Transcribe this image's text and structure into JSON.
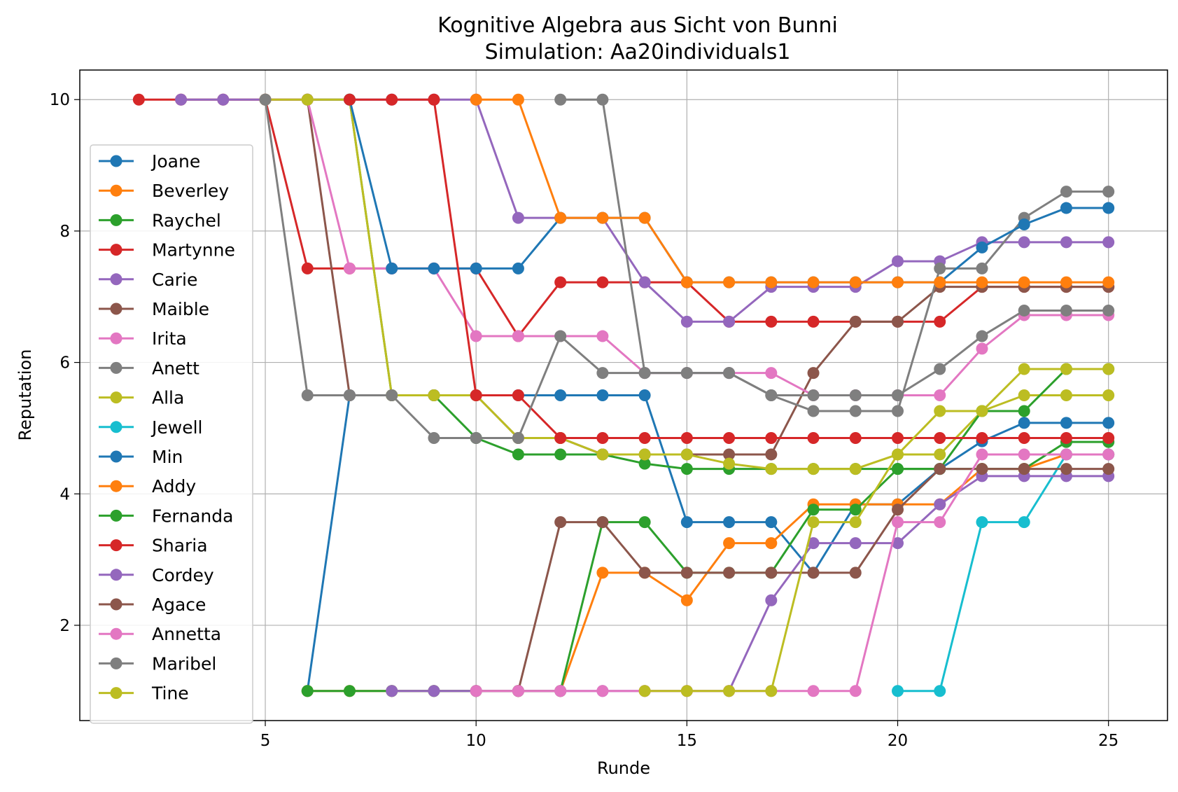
{
  "chart_data": {
    "type": "line",
    "title": "Kognitive Algebra aus Sicht von Bunni",
    "subtitle": "Simulation: Aa20individuals1",
    "xlabel": "Runde",
    "ylabel": "Reputation",
    "xlim": [
      0.6,
      26.4
    ],
    "ylim": [
      0.55,
      10.45
    ],
    "xticks": [
      5,
      10,
      15,
      20,
      25
    ],
    "yticks": [
      2,
      4,
      6,
      8,
      10
    ],
    "grid": true,
    "legend_position": "left",
    "series": [
      {
        "name": "Joane",
        "color": "#1f77b4",
        "x": [
          6,
          7,
          8,
          9,
          10,
          11,
          12,
          13,
          14,
          15,
          16,
          17,
          18,
          19,
          20,
          21,
          22,
          23,
          24,
          25
        ],
        "y": [
          1,
          5.5,
          5.5,
          5.5,
          5.5,
          5.5,
          5.5,
          5.5,
          5.5,
          3.57,
          3.57,
          3.57,
          2.8,
          3.84,
          3.84,
          4.38,
          4.8,
          5.08,
          5.08,
          5.08
        ]
      },
      {
        "name": "Beverley",
        "color": "#ff7f0e",
        "x": [
          6,
          7,
          8,
          9,
          10,
          11,
          12,
          13,
          14,
          15,
          16,
          17,
          18,
          19,
          20,
          21,
          22,
          23,
          24,
          25
        ],
        "y": [
          1,
          1,
          1,
          1,
          1,
          1,
          1,
          2.8,
          2.8,
          2.38,
          3.25,
          3.25,
          3.84,
          3.84,
          3.84,
          3.84,
          4.38,
          4.38,
          4.6,
          4.6
        ]
      },
      {
        "name": "Raychel",
        "color": "#2ca02c",
        "x": [
          6,
          7,
          8,
          9,
          10,
          11,
          12,
          13,
          14,
          15,
          16,
          17,
          18,
          19,
          20,
          21,
          22,
          23,
          24,
          25
        ],
        "y": [
          10,
          10,
          5.5,
          5.5,
          4.85,
          4.6,
          4.6,
          4.6,
          4.46,
          4.38,
          4.38,
          4.38,
          4.38,
          4.38,
          4.38,
          4.38,
          4.38,
          4.38,
          4.79,
          4.79
        ]
      },
      {
        "name": "Martynne",
        "color": "#d62728",
        "x": [
          2,
          3,
          4,
          5,
          6,
          7,
          8,
          9,
          10,
          11,
          12,
          13,
          14,
          15,
          16,
          17,
          18,
          19,
          20,
          21,
          22,
          23,
          24,
          25
        ],
        "y": [
          10,
          10,
          10,
          10,
          7.43,
          7.43,
          7.43,
          7.43,
          7.43,
          6.4,
          7.22,
          7.22,
          7.22,
          7.22,
          6.62,
          6.62,
          6.62,
          6.62,
          6.62,
          6.62,
          7.15,
          7.15,
          7.15,
          7.15
        ]
      },
      {
        "name": "Carie",
        "color": "#9467bd",
        "x": [
          3,
          4,
          5,
          6,
          7,
          8,
          9,
          10,
          11,
          12,
          13,
          14,
          15,
          16,
          17,
          18,
          19,
          20,
          21,
          22,
          23,
          24,
          25
        ],
        "y": [
          10,
          10,
          10,
          10,
          10,
          10,
          10,
          10,
          8.2,
          8.2,
          8.2,
          7.22,
          6.62,
          6.62,
          7.15,
          7.15,
          7.15,
          7.54,
          7.54,
          7.83,
          7.83,
          7.83,
          7.83
        ]
      },
      {
        "name": "Maible",
        "color": "#8c564b",
        "x": [
          5,
          6,
          7,
          8,
          9,
          10,
          11,
          12,
          13,
          14,
          15,
          16,
          17,
          18,
          19,
          20,
          21,
          22,
          23,
          24,
          25
        ],
        "y": [
          10,
          10,
          5.5,
          5.5,
          5.5,
          5.5,
          4.85,
          4.85,
          4.6,
          4.6,
          4.6,
          4.6,
          4.6,
          5.84,
          6.62,
          6.62,
          7.15,
          7.15,
          7.15,
          7.15,
          7.15
        ]
      },
      {
        "name": "Irita",
        "color": "#e377c2",
        "x": [
          5,
          6,
          7,
          8,
          9,
          10,
          11,
          12,
          13,
          14,
          15,
          16,
          17,
          18,
          19,
          20,
          21,
          22,
          23,
          24,
          25
        ],
        "y": [
          10,
          10,
          7.43,
          7.43,
          7.43,
          6.4,
          6.4,
          6.4,
          6.4,
          5.84,
          5.84,
          5.84,
          5.84,
          5.5,
          5.5,
          5.5,
          5.5,
          6.21,
          6.72,
          6.72,
          6.72
        ]
      },
      {
        "name": "Anett",
        "color": "#7f7f7f",
        "x": [
          12,
          13,
          14,
          15,
          16,
          17,
          18,
          19,
          20,
          21,
          22,
          23,
          24,
          25
        ],
        "y": [
          10,
          10,
          5.84,
          5.84,
          5.84,
          5.5,
          5.26,
          5.26,
          5.26,
          7.43,
          7.43,
          8.2,
          8.6,
          8.6
        ]
      },
      {
        "name": "Alla",
        "color": "#bcbd22",
        "x": [
          5,
          6,
          7,
          8,
          9,
          10,
          11,
          12,
          13,
          14,
          15,
          16,
          17,
          18,
          19,
          20,
          21,
          22,
          23,
          24,
          25
        ],
        "y": [
          10,
          10,
          10,
          5.5,
          5.5,
          5.5,
          4.85,
          4.85,
          4.6,
          4.6,
          4.6,
          4.46,
          4.38,
          4.38,
          4.38,
          4.6,
          4.6,
          5.26,
          5.5,
          5.5,
          5.5
        ]
      },
      {
        "name": "Jewell",
        "color": "#17becf",
        "x": [
          20,
          21,
          22,
          23,
          24,
          25
        ],
        "y": [
          1,
          1,
          3.57,
          3.57,
          4.6,
          4.6
        ]
      },
      {
        "name": "Min",
        "color": "#1f77b4",
        "x": [
          7,
          8,
          9,
          10,
          11,
          12,
          13,
          14,
          15,
          16,
          17,
          18,
          19,
          20,
          21,
          22,
          23,
          24,
          25
        ],
        "y": [
          10,
          7.43,
          7.43,
          7.43,
          7.43,
          8.2,
          8.2,
          8.2,
          7.22,
          7.22,
          7.22,
          7.22,
          7.22,
          7.22,
          7.22,
          7.75,
          8.1,
          8.35,
          8.35
        ]
      },
      {
        "name": "Addy",
        "color": "#ff7f0e",
        "x": [
          10,
          11,
          12,
          13,
          14,
          15,
          16,
          17,
          18,
          19,
          20,
          21,
          22,
          23,
          24,
          25
        ],
        "y": [
          10,
          10,
          8.2,
          8.2,
          8.2,
          7.22,
          7.22,
          7.22,
          7.22,
          7.22,
          7.22,
          7.22,
          7.22,
          7.22,
          7.22,
          7.22
        ]
      },
      {
        "name": "Fernanda",
        "color": "#2ca02c",
        "x": [
          6,
          7,
          8,
          9,
          10,
          11,
          12,
          13,
          14,
          15,
          16,
          17,
          18,
          19,
          20,
          21,
          22,
          23,
          24,
          25
        ],
        "y": [
          1,
          1,
          1,
          1,
          1,
          1,
          1,
          3.57,
          3.57,
          2.8,
          2.8,
          2.8,
          3.76,
          3.76,
          4.38,
          4.38,
          5.26,
          5.26,
          5.9,
          5.9
        ]
      },
      {
        "name": "Sharia",
        "color": "#d62728",
        "x": [
          7,
          8,
          9,
          10,
          11,
          12,
          13,
          14,
          15,
          16,
          17,
          18,
          19,
          20,
          21,
          22,
          23,
          24,
          25
        ],
        "y": [
          10,
          10,
          10,
          5.5,
          5.5,
          4.85,
          4.85,
          4.85,
          4.85,
          4.85,
          4.85,
          4.85,
          4.85,
          4.85,
          4.85,
          4.85,
          4.85,
          4.85,
          4.85
        ]
      },
      {
        "name": "Cordey",
        "color": "#9467bd",
        "x": [
          8,
          9,
          10,
          11,
          12,
          13,
          14,
          15,
          16,
          17,
          18,
          19,
          20,
          21,
          22,
          23,
          24,
          25
        ],
        "y": [
          1,
          1,
          1,
          1,
          1,
          1,
          1,
          1,
          1,
          2.38,
          3.25,
          3.25,
          3.25,
          3.84,
          4.27,
          4.27,
          4.27,
          4.27
        ]
      },
      {
        "name": "Agace",
        "color": "#8c564b",
        "x": [
          11,
          12,
          13,
          14,
          15,
          16,
          17,
          18,
          19,
          20,
          21,
          22,
          23,
          24,
          25
        ],
        "y": [
          1,
          3.57,
          3.57,
          2.8,
          2.8,
          2.8,
          2.8,
          2.8,
          2.8,
          3.76,
          4.38,
          4.38,
          4.38,
          4.38,
          4.38
        ]
      },
      {
        "name": "Annetta",
        "color": "#e377c2",
        "x": [
          10,
          11,
          12,
          13,
          14,
          15,
          16,
          17,
          18,
          19,
          20,
          21,
          22,
          23,
          24,
          25
        ],
        "y": [
          1,
          1,
          1,
          1,
          1,
          1,
          1,
          1,
          1,
          1,
          3.57,
          3.57,
          4.6,
          4.6,
          4.6,
          4.6
        ]
      },
      {
        "name": "Maribel",
        "color": "#7f7f7f",
        "x": [
          5,
          6,
          7,
          8,
          9,
          10,
          11,
          12,
          13,
          14,
          15,
          16,
          17,
          18,
          19,
          20,
          21,
          22,
          23,
          24,
          25
        ],
        "y": [
          10,
          5.5,
          5.5,
          5.5,
          4.85,
          4.85,
          4.85,
          6.4,
          5.84,
          5.84,
          5.84,
          5.84,
          5.5,
          5.5,
          5.5,
          5.5,
          5.9,
          6.4,
          6.79,
          6.79,
          6.79
        ]
      },
      {
        "name": "Tine",
        "color": "#bcbd22",
        "x": [
          14,
          15,
          16,
          17,
          18,
          19,
          20,
          21,
          22,
          23,
          24,
          25
        ],
        "y": [
          1,
          1,
          1,
          1,
          3.57,
          3.57,
          4.6,
          5.26,
          5.26,
          5.9,
          5.9,
          5.9
        ]
      }
    ]
  }
}
